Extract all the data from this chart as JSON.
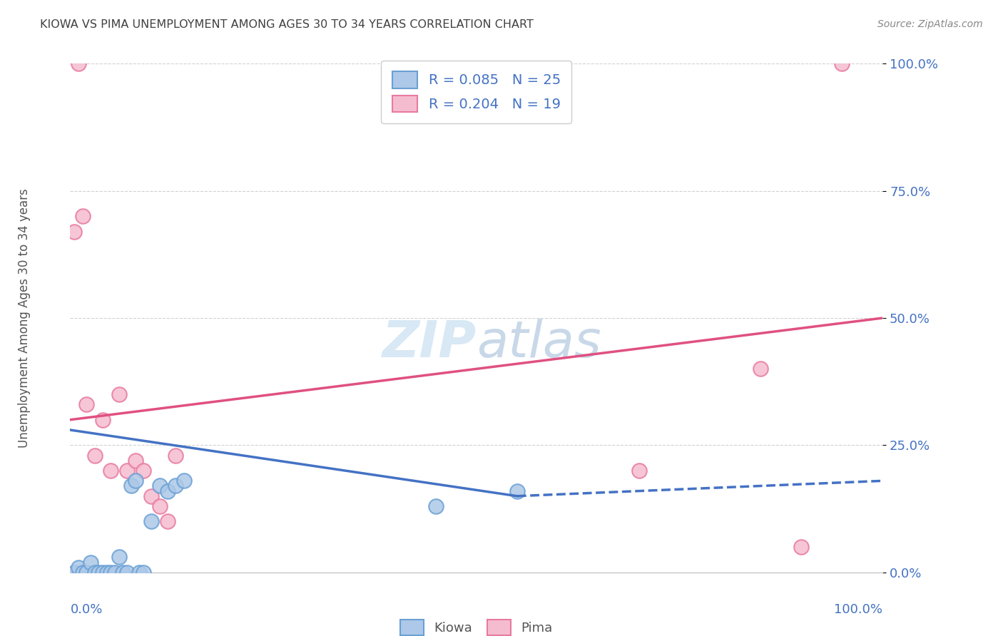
{
  "title": "KIOWA VS PIMA UNEMPLOYMENT AMONG AGES 30 TO 34 YEARS CORRELATION CHART",
  "source": "Source: ZipAtlas.com",
  "ylabel": "Unemployment Among Ages 30 to 34 years",
  "ytick_labels": [
    "0.0%",
    "25.0%",
    "50.0%",
    "75.0%",
    "100.0%"
  ],
  "ytick_values": [
    0,
    25,
    50,
    75,
    100
  ],
  "xlim": [
    0,
    100
  ],
  "ylim": [
    0,
    100
  ],
  "kiowa_R": 0.085,
  "kiowa_N": 25,
  "pima_R": 0.204,
  "pima_N": 19,
  "kiowa_color": "#adc8e8",
  "kiowa_edge_color": "#6aa0d4",
  "pima_color": "#f5bcd0",
  "pima_edge_color": "#e87aa0",
  "regression_kiowa_color": "#4472c4",
  "regression_pima_color": "#e05080",
  "background_color": "#ffffff",
  "grid_color": "#cccccc",
  "title_color": "#404040",
  "watermark_color": "#d8e8f5",
  "axis_label_color": "#4472c4",
  "legend_R_color": "#4472c4",
  "kiowa_scatter_x": [
    0.5,
    1.0,
    1.5,
    2.0,
    2.5,
    3.0,
    3.5,
    4.0,
    4.5,
    5.0,
    5.5,
    6.0,
    6.5,
    7.0,
    7.5,
    8.0,
    8.5,
    9.0,
    10.0,
    11.0,
    12.0,
    13.0,
    14.0,
    45.0,
    55.0
  ],
  "kiowa_scatter_y": [
    0,
    1,
    0,
    0,
    2,
    0,
    0,
    0,
    0,
    0,
    0,
    3,
    0,
    0,
    17,
    18,
    0,
    0,
    10,
    17,
    16,
    17,
    18,
    13,
    16
  ],
  "pima_scatter_x": [
    1.0,
    1.5,
    2.0,
    3.0,
    4.0,
    5.0,
    6.0,
    7.0,
    8.0,
    9.0,
    10.0,
    11.0,
    12.0,
    13.0,
    70.0,
    85.0,
    90.0,
    95.0,
    0.5
  ],
  "pima_scatter_y": [
    100,
    70,
    33,
    23,
    30,
    20,
    35,
    20,
    22,
    20,
    15,
    13,
    10,
    23,
    20,
    40,
    5,
    100,
    67
  ],
  "kiowa_line_x0": 0,
  "kiowa_line_y0": 28,
  "kiowa_line_x1": 55,
  "kiowa_line_y1": 15,
  "kiowa_dash_x0": 55,
  "kiowa_dash_y0": 15,
  "kiowa_dash_x1": 100,
  "kiowa_dash_y1": 18,
  "pima_line_x0": 0,
  "pima_line_y0": 30,
  "pima_line_x1": 100,
  "pima_line_y1": 50
}
